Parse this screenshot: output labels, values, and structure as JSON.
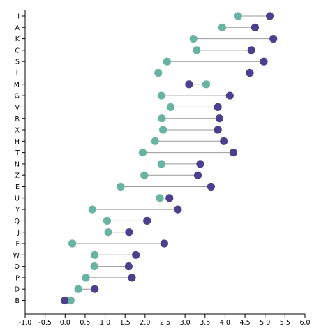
{
  "chart_data": {
    "type": "dumbbell",
    "title": "",
    "xlabel": "",
    "ylabel": "",
    "xlim": [
      -1.0,
      6.0
    ],
    "x_ticks": [
      "-1.0",
      "-0.5",
      "0.0",
      "0.5",
      "1.0",
      "1.5",
      "2.0",
      "2.5",
      "3.0",
      "3.5",
      "4.0",
      "4.5",
      "5.0",
      "5.5",
      "6.0"
    ],
    "categories": [
      "I",
      "A",
      "K",
      "C",
      "S",
      "L",
      "M",
      "G",
      "V",
      "R",
      "X",
      "H",
      "T",
      "N",
      "Z",
      "E",
      "U",
      "Y",
      "Q",
      "J",
      "F",
      "W",
      "O",
      "P",
      "D",
      "B"
    ],
    "series": [
      {
        "color": "#69b3a2",
        "values": [
          4.33,
          3.93,
          3.21,
          3.29,
          2.55,
          2.33,
          3.53,
          2.41,
          2.64,
          2.42,
          2.45,
          2.25,
          1.94,
          2.41,
          1.98,
          1.39,
          2.37,
          0.68,
          1.05,
          1.08,
          0.18,
          0.74,
          0.73,
          0.52,
          0.33,
          0.14
        ]
      },
      {
        "color": "#4c3f8e",
        "values": [
          5.12,
          4.75,
          5.21,
          4.66,
          4.97,
          4.62,
          3.1,
          4.12,
          3.82,
          3.86,
          3.82,
          3.97,
          4.21,
          3.38,
          3.32,
          3.65,
          2.61,
          2.82,
          2.05,
          1.6,
          2.48,
          1.77,
          1.59,
          1.67,
          0.74,
          -0.01
        ]
      }
    ],
    "grid": false,
    "legend": "none"
  }
}
